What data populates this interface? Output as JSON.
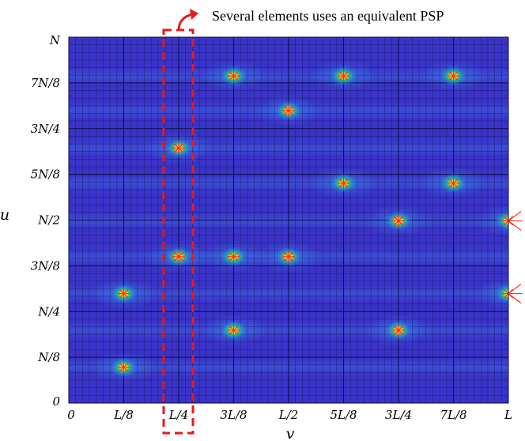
{
  "chart_data": {
    "type": "heatmap",
    "title": "",
    "xlabel": "v",
    "ylabel": "u",
    "x_tick_labels": [
      "0",
      "L/8",
      "L/4",
      "3L/8",
      "L/2",
      "5L/8",
      "3L/4",
      "7L/8",
      "L"
    ],
    "y_tick_labels": [
      "0",
      "N/8",
      "N/4",
      "3N/8",
      "N/2",
      "5N/8",
      "3N/4",
      "7N/8",
      "N"
    ],
    "xlim": [
      0,
      1
    ],
    "ylim": [
      0,
      1
    ],
    "grid": true,
    "colormap": "parula",
    "colors": {
      "background": "#3a33c8",
      "grid": "#10124a",
      "peak_center": "#ffd21e",
      "peak_mid": "#3ccb63",
      "cross": "#ff2a1a",
      "highlight": "#e8191b"
    },
    "peaks": [
      {
        "v": 0.125,
        "u": 0.098
      },
      {
        "v": 0.125,
        "u": 0.299
      },
      {
        "v": 0.25,
        "u": 0.4
      },
      {
        "v": 0.25,
        "u": 0.697
      },
      {
        "v": 0.375,
        "u": 0.4
      },
      {
        "v": 0.375,
        "u": 0.199
      },
      {
        "v": 0.375,
        "u": 0.894
      },
      {
        "v": 0.5,
        "u": 0.799
      },
      {
        "v": 0.625,
        "u": 0.601
      },
      {
        "v": 0.75,
        "u": 0.498
      },
      {
        "v": 0.75,
        "u": 0.199
      },
      {
        "v": 0.875,
        "u": 0.601
      },
      {
        "v": 0.625,
        "u": 0.894
      },
      {
        "v": 0.875,
        "u": 0.894
      },
      {
        "v": 1.0,
        "u": 0.498
      },
      {
        "v": 1.0,
        "u": 0.299
      },
      {
        "v": 0.5,
        "u": 0.4
      }
    ],
    "highlighted_column": {
      "v_from": 0.25,
      "v_to": 0.25
    },
    "edge_markers": [
      {
        "v": 1.0,
        "u": 0.498
      },
      {
        "v": 1.0,
        "u": 0.299
      }
    ],
    "annotation": "Several elements uses an equivalent PSP"
  }
}
